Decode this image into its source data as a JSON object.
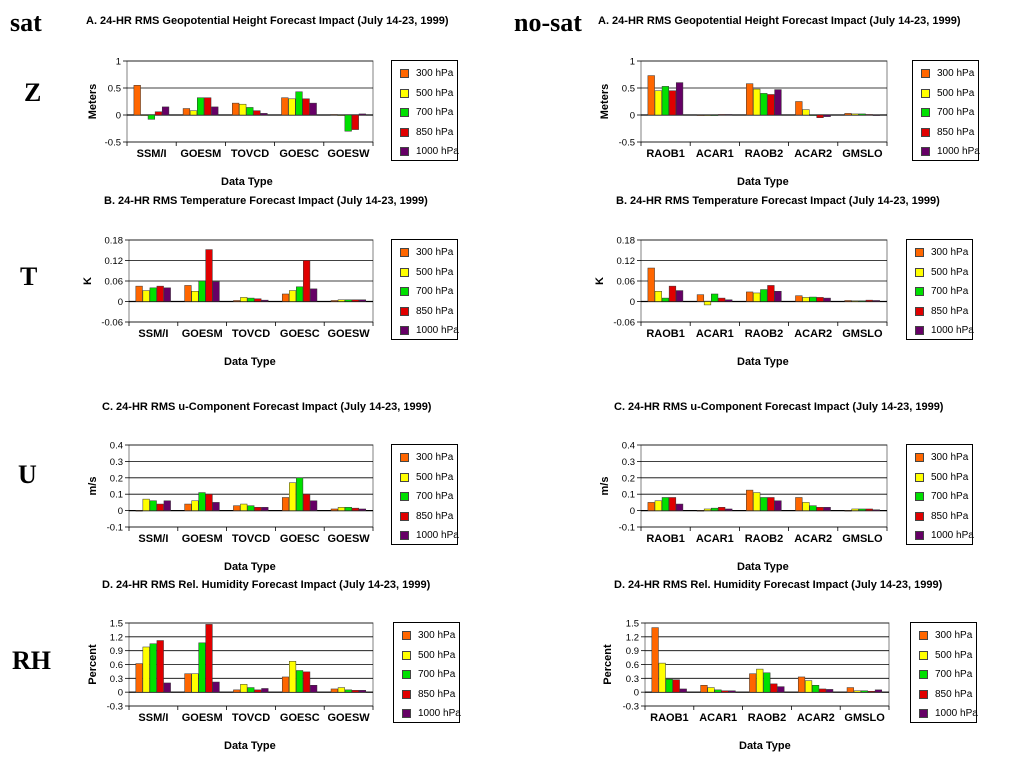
{
  "labels": {
    "sat": "sat",
    "nosat": "no-sat",
    "Z": "Z",
    "T": "T",
    "U": "U",
    "RH": "RH"
  },
  "legend": [
    {
      "name": "300 hPa",
      "color": "#ff6600"
    },
    {
      "name": "500 hPa",
      "color": "#ffff00"
    },
    {
      "name": "700 hPa",
      "color": "#00e000"
    },
    {
      "name": "850 hPa",
      "color": "#e00000"
    },
    {
      "name": "1000 hPa",
      "color": "#660066"
    }
  ],
  "chart_data": [
    {
      "id": "sat-z",
      "type": "bar",
      "title": "A.  24-HR RMS Geopotential Height Forecast Impact (July 14-23, 1999)",
      "xlabel": "Data Type",
      "ylabel": "Meters",
      "ylim": [
        -0.5,
        1
      ],
      "yticks": [
        "1",
        "0.5",
        "0",
        "-0.5"
      ],
      "ytick_values": [
        1,
        0.5,
        0,
        -0.5
      ],
      "categories": [
        "SSM/I",
        "GOESM",
        "TOVCD",
        "GOESC",
        "GOESW"
      ],
      "series": [
        {
          "name": "300 hPa",
          "values": [
            0.55,
            0.12,
            0.22,
            0.32,
            0.01
          ]
        },
        {
          "name": "500 hPa",
          "values": [
            0,
            0.08,
            0.2,
            0.3,
            0
          ]
        },
        {
          "name": "700 hPa",
          "values": [
            -0.08,
            0.32,
            0.14,
            0.43,
            -0.3
          ]
        },
        {
          "name": "850 hPa",
          "values": [
            0.06,
            0.32,
            0.08,
            0.3,
            -0.27
          ]
        },
        {
          "name": "1000 hPa",
          "values": [
            0.15,
            0.15,
            0.03,
            0.22,
            0.02
          ]
        }
      ]
    },
    {
      "id": "nosat-z",
      "type": "bar",
      "title": "A.  24-HR RMS Geopotential Height Forecast Impact (July 14-23, 1999)",
      "xlabel": "Data Type",
      "ylabel": "Meters",
      "ylim": [
        -0.5,
        1
      ],
      "yticks": [
        "1",
        "0.5",
        "0",
        "-0.5"
      ],
      "ytick_values": [
        1,
        0.5,
        0,
        -0.5
      ],
      "categories": [
        "RAOB1",
        "ACAR1",
        "RAOB2",
        "ACAR2",
        "GMSLO"
      ],
      "series": [
        {
          "name": "300 hPa",
          "values": [
            0.73,
            0,
            0.58,
            0.25,
            0.03
          ]
        },
        {
          "name": "500 hPa",
          "values": [
            0.45,
            0,
            0.48,
            0.1,
            0.02
          ]
        },
        {
          "name": "700 hPa",
          "values": [
            0.53,
            0,
            0.4,
            0,
            0.02
          ]
        },
        {
          "name": "850 hPa",
          "values": [
            0.45,
            0.01,
            0.38,
            -0.05,
            0.01
          ]
        },
        {
          "name": "1000 hPa",
          "values": [
            0.6,
            0.01,
            0.47,
            -0.03,
            0
          ]
        }
      ]
    },
    {
      "id": "sat-t",
      "type": "bar",
      "title": "B.  24-HR RMS Temperature Forecast Impact (July 14-23, 1999)",
      "xlabel": "Data Type",
      "ylabel": "K",
      "ylim": [
        -0.06,
        0.18
      ],
      "yticks": [
        "0.18",
        "0.12",
        "0.06",
        "0",
        "-0.06"
      ],
      "ytick_values": [
        0.18,
        0.12,
        0.06,
        0,
        -0.06
      ],
      "categories": [
        "SSM/I",
        "GOESM",
        "TOVCD",
        "GOESC",
        "GOESW"
      ],
      "series": [
        {
          "name": "300 hPa",
          "values": [
            0.045,
            0.047,
            0.003,
            0.022,
            0.003
          ]
        },
        {
          "name": "500 hPa",
          "values": [
            0.032,
            0.03,
            0.012,
            0.032,
            0.005
          ]
        },
        {
          "name": "700 hPa",
          "values": [
            0.04,
            0.06,
            0.01,
            0.043,
            0.005
          ]
        },
        {
          "name": "850 hPa",
          "values": [
            0.045,
            0.152,
            0.008,
            0.12,
            0.005
          ]
        },
        {
          "name": "1000 hPa",
          "values": [
            0.04,
            0.058,
            0.004,
            0.037,
            0.005
          ]
        }
      ]
    },
    {
      "id": "nosat-t",
      "type": "bar",
      "title": "B.  24-HR RMS Temperature Forecast Impact (July 14-23, 1999)",
      "xlabel": "Data Type",
      "ylabel": "K",
      "ylim": [
        -0.06,
        0.18
      ],
      "yticks": [
        "0.18",
        "0.12",
        "0.06",
        "0",
        "-0.06"
      ],
      "ytick_values": [
        0.18,
        0.12,
        0.06,
        0,
        -0.06
      ],
      "categories": [
        "RAOB1",
        "ACAR1",
        "RAOB2",
        "ACAR2",
        "GMSLO"
      ],
      "series": [
        {
          "name": "300 hPa",
          "values": [
            0.098,
            0.02,
            0.028,
            0.017,
            0.003
          ]
        },
        {
          "name": "500 hPa",
          "values": [
            0.03,
            -0.01,
            0.025,
            0.012,
            0.002
          ]
        },
        {
          "name": "700 hPa",
          "values": [
            0.01,
            0.022,
            0.035,
            0.013,
            0.002
          ]
        },
        {
          "name": "850 hPa",
          "values": [
            0.045,
            0.01,
            0.047,
            0.012,
            0.004
          ]
        },
        {
          "name": "1000 hPa",
          "values": [
            0.032,
            0.005,
            0.03,
            0.01,
            0.003
          ]
        }
      ]
    },
    {
      "id": "sat-u",
      "type": "bar",
      "title": "C.  24-HR RMS u-Component Forecast Impact (July 14-23, 1999)",
      "xlabel": "Data Type",
      "ylabel": "m/s",
      "ylim": [
        -0.1,
        0.4
      ],
      "yticks": [
        "0.4",
        "0.3",
        "0.2",
        "0.1",
        "0",
        "-0.1"
      ],
      "ytick_values": [
        0.4,
        0.3,
        0.2,
        0.1,
        0,
        -0.1
      ],
      "categories": [
        "SSM/I",
        "GOESM",
        "TOVCD",
        "GOESC",
        "GOESW"
      ],
      "series": [
        {
          "name": "300 hPa",
          "values": [
            0.0,
            0.04,
            0.03,
            0.08,
            0.01
          ]
        },
        {
          "name": "500 hPa",
          "values": [
            0.07,
            0.06,
            0.04,
            0.17,
            0.02
          ]
        },
        {
          "name": "700 hPa",
          "values": [
            0.06,
            0.11,
            0.03,
            0.2,
            0.02
          ]
        },
        {
          "name": "850 hPa",
          "values": [
            0.04,
            0.1,
            0.02,
            0.1,
            0.015
          ]
        },
        {
          "name": "1000 hPa",
          "values": [
            0.06,
            0.05,
            0.02,
            0.06,
            0.01
          ]
        }
      ]
    },
    {
      "id": "nosat-u",
      "type": "bar",
      "title": "C.  24-HR RMS u-Component Forecast Impact (July 14-23, 1999)",
      "xlabel": "Data Type",
      "ylabel": "m/s",
      "ylim": [
        -0.1,
        0.4
      ],
      "yticks": [
        "0.4",
        "0.3",
        "0.2",
        "0.1",
        "0",
        "-0.1"
      ],
      "ytick_values": [
        0.4,
        0.3,
        0.2,
        0.1,
        0,
        -0.1
      ],
      "categories": [
        "RAOB1",
        "ACAR1",
        "RAOB2",
        "ACAR2",
        "GMSLO"
      ],
      "series": [
        {
          "name": "300 hPa",
          "values": [
            0.05,
            0.0,
            0.125,
            0.08,
            0.0
          ]
        },
        {
          "name": "500 hPa",
          "values": [
            0.06,
            0.01,
            0.11,
            0.05,
            0.01
          ]
        },
        {
          "name": "700 hPa",
          "values": [
            0.08,
            0.015,
            0.08,
            0.03,
            0.01
          ]
        },
        {
          "name": "850 hPa",
          "values": [
            0.08,
            0.02,
            0.08,
            0.02,
            0.01
          ]
        },
        {
          "name": "1000 hPa",
          "values": [
            0.04,
            0.01,
            0.06,
            0.02,
            0.005
          ]
        }
      ]
    },
    {
      "id": "sat-rh",
      "type": "bar",
      "title": "D.  24-HR RMS Rel. Humidity Forecast Impact (July 14-23, 1999)",
      "xlabel": "Data Type",
      "ylabel": "Percent",
      "ylim": [
        -0.3,
        1.5
      ],
      "yticks": [
        "1.5",
        "1.2",
        "0.9",
        "0.6",
        "0.3",
        "0",
        "-0.3"
      ],
      "ytick_values": [
        1.5,
        1.2,
        0.9,
        0.6,
        0.3,
        0,
        -0.3
      ],
      "categories": [
        "SSM/I",
        "GOESM",
        "TOVCD",
        "GOESC",
        "GOESW"
      ],
      "series": [
        {
          "name": "300 hPa",
          "values": [
            0.62,
            0.4,
            0.05,
            0.33,
            0.07
          ]
        },
        {
          "name": "500 hPa",
          "values": [
            0.98,
            0.4,
            0.17,
            0.67,
            0.1
          ]
        },
        {
          "name": "700 hPa",
          "values": [
            1.05,
            1.07,
            0.1,
            0.47,
            0.05
          ]
        },
        {
          "name": "850 hPa",
          "values": [
            1.12,
            1.47,
            0.05,
            0.44,
            0.04
          ]
        },
        {
          "name": "1000 hPa",
          "values": [
            0.2,
            0.22,
            0.08,
            0.15,
            0.04
          ]
        }
      ]
    },
    {
      "id": "nosat-rh",
      "type": "bar",
      "title": "D.  24-HR RMS Rel. Humidity Forecast Impact (July 14-23, 1999)",
      "xlabel": "Data Type",
      "ylabel": "Percent",
      "ylim": [
        -0.3,
        1.5
      ],
      "yticks": [
        "1.5",
        "1.2",
        "0.9",
        "0.6",
        "0.3",
        "0",
        "-0.3"
      ],
      "ytick_values": [
        1.5,
        1.2,
        0.9,
        0.6,
        0.3,
        0,
        -0.3
      ],
      "categories": [
        "RAOB1",
        "ACAR1",
        "RAOB2",
        "ACAR2",
        "GMSLO"
      ],
      "series": [
        {
          "name": "300 hPa",
          "values": [
            1.4,
            0.15,
            0.4,
            0.33,
            0.1
          ]
        },
        {
          "name": "500 hPa",
          "values": [
            0.63,
            0.1,
            0.5,
            0.25,
            0.03
          ]
        },
        {
          "name": "700 hPa",
          "values": [
            0.28,
            0.05,
            0.42,
            0.15,
            0.03
          ]
        },
        {
          "name": "850 hPa",
          "values": [
            0.27,
            0.03,
            0.18,
            0.07,
            0.02
          ]
        },
        {
          "name": "1000 hPa",
          "values": [
            0.07,
            0.03,
            0.12,
            0.06,
            0.05
          ]
        }
      ]
    }
  ]
}
